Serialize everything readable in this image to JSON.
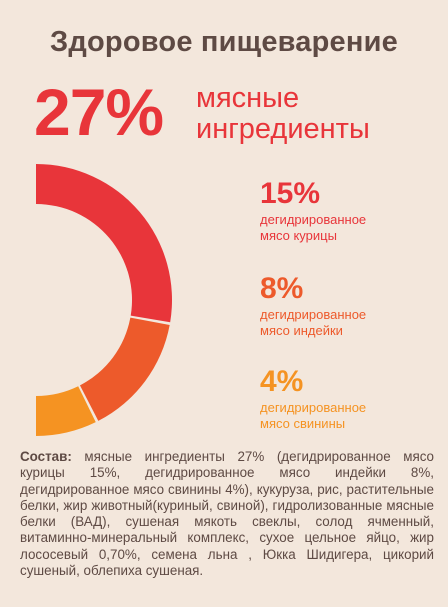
{
  "header": {
    "title": "Здоровое пищеварение",
    "main_percent": "27%",
    "main_label_line1": "мясные",
    "main_label_line2": "ингредиенты"
  },
  "chart_data": {
    "type": "pie",
    "series": [
      {
        "name": "дегидрированное мясо курицы",
        "value": 15,
        "label": "15%",
        "desc_line1": "дегидрированное",
        "desc_line2": "мясо курицы",
        "color": "#e8353a"
      },
      {
        "name": "дегидрированное мясо индейки",
        "value": 8,
        "label": "8%",
        "desc_line1": "дегидрированное",
        "desc_line2": "мясо индейки",
        "color": "#ed5a2b"
      },
      {
        "name": "дегидрированное мясо свинины",
        "value": 4,
        "label": "4%",
        "desc_line1": "дегидрированное",
        "desc_line2": "мясо свинины",
        "color": "#f59322"
      }
    ],
    "total": 27
  },
  "composition": {
    "label": "Состав:",
    "text": " мясные ингредиенты 27% (дегидрированное мясо курицы 15%, дегидрированное мясо индейки 8%, дегидрированное мясо свинины 4%), кукуруза, рис, растительные белки, жир животный(куриный, свиной), гидролизованные мясные белки (ВАД), сушеная мякоть свеклы, солод ячменный, витаминно-минеральный комплекс, сухое цельное яйцо, жир лососевый 0,70%, семена льна , Юкка Шидигера, цикорий сушеный, облепиха сушеная."
  }
}
